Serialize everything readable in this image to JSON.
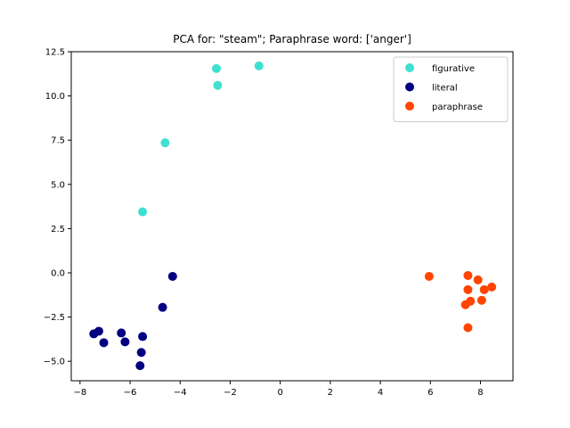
{
  "chart_data": {
    "type": "scatter",
    "title": "PCA for: \"steam\"; Paraphrase word: ['anger']",
    "xlabel": "",
    "ylabel": "",
    "xlim": [
      -8.35,
      9.3
    ],
    "ylim": [
      -6.1,
      12.5
    ],
    "xticks": [
      -8,
      -6,
      -4,
      -2,
      0,
      2,
      4,
      6,
      8
    ],
    "yticks": [
      -5.0,
      -2.5,
      0.0,
      2.5,
      5.0,
      7.5,
      10.0,
      12.5
    ],
    "xtick_labels": [
      "−8",
      "−6",
      "−4",
      "−2",
      "0",
      "2",
      "4",
      "6",
      "8"
    ],
    "ytick_labels": [
      "−5.0",
      "−2.5",
      "0.0",
      "2.5",
      "5.0",
      "7.5",
      "10.0",
      "12.5"
    ],
    "grid": false,
    "legend_position": "top-right",
    "series": [
      {
        "name": "figurative",
        "color": "#40e0d0",
        "points": [
          [
            -0.85,
            11.7
          ],
          [
            -2.55,
            11.55
          ],
          [
            -2.5,
            10.6
          ],
          [
            -4.6,
            7.35
          ],
          [
            -5.5,
            3.45
          ]
        ]
      },
      {
        "name": "literal",
        "color": "#000080",
        "points": [
          [
            -4.3,
            -0.2
          ],
          [
            -4.7,
            -1.95
          ],
          [
            -7.45,
            -3.45
          ],
          [
            -7.25,
            -3.3
          ],
          [
            -7.05,
            -3.95
          ],
          [
            -6.35,
            -3.4
          ],
          [
            -6.2,
            -3.9
          ],
          [
            -5.5,
            -3.6
          ],
          [
            -5.55,
            -4.5
          ],
          [
            -5.6,
            -5.25
          ]
        ]
      },
      {
        "name": "paraphrase",
        "color": "#ff4500",
        "points": [
          [
            5.95,
            -0.2
          ],
          [
            7.5,
            -0.15
          ],
          [
            7.9,
            -0.4
          ],
          [
            8.45,
            -0.8
          ],
          [
            7.5,
            -0.95
          ],
          [
            8.15,
            -0.95
          ],
          [
            7.6,
            -1.6
          ],
          [
            8.05,
            -1.55
          ],
          [
            7.4,
            -1.8
          ],
          [
            7.5,
            -3.1
          ]
        ]
      }
    ]
  }
}
